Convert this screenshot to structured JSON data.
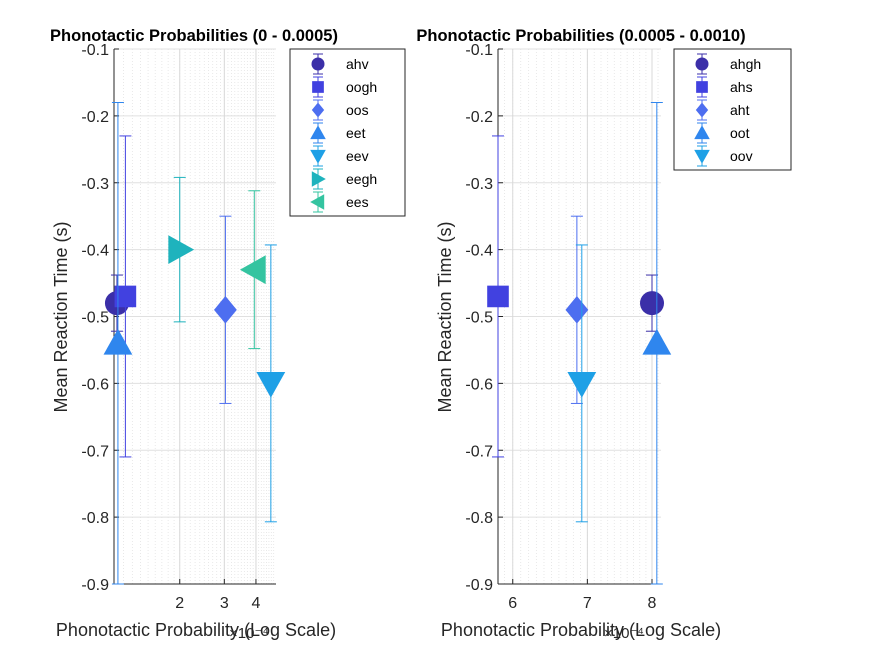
{
  "chart_data": [
    {
      "type": "scatter",
      "title": "Phonotactic Probabilities (0 - 0.0005)",
      "xlabel": "Phonotactic Probability (Log Scale)",
      "ylabel": "Mean Reaction Time (s)",
      "x_scale": "log",
      "x_exponent_label": "×10⁻⁴",
      "xlim": [
        0.00011,
        0.00048
      ],
      "xticks": [
        0.0002,
        0.0003,
        0.0004
      ],
      "xtick_labels": [
        "2",
        "3",
        "4"
      ],
      "ylim": [
        -0.9,
        -0.1
      ],
      "yticks": [
        -0.9,
        -0.8,
        -0.7,
        -0.6,
        -0.5,
        -0.4,
        -0.3,
        -0.2,
        -0.1
      ],
      "ytick_labels": [
        "-0.9",
        "-0.8",
        "-0.7",
        "-0.6",
        "-0.5",
        "-0.4",
        "-0.3",
        "-0.2",
        "-0.1"
      ],
      "grid": true,
      "legend_position": "top-right",
      "series": [
        {
          "name": "ahv",
          "marker": "circle",
          "color": "#3b2fa8",
          "x": 0.000113,
          "y": -0.48,
          "err": 0.042
        },
        {
          "name": "oogh",
          "marker": "square",
          "color": "#4141e0",
          "x": 0.000122,
          "y": -0.47,
          "err": 0.24
        },
        {
          "name": "oos",
          "marker": "diamond",
          "color": "#4d6ef0",
          "x": 0.000303,
          "y": -0.49,
          "err": 0.14
        },
        {
          "name": "eet",
          "marker": "triangle-up",
          "color": "#2f86ee",
          "x": 0.000114,
          "y": -0.54,
          "err": 0.36
        },
        {
          "name": "eev",
          "marker": "triangle-down",
          "color": "#1ea0e6",
          "x": 0.000458,
          "y": -0.6,
          "err": 0.207
        },
        {
          "name": "eegh",
          "marker": "triangle-right",
          "color": "#1eb3bd",
          "x": 0.0002,
          "y": -0.4,
          "err": 0.108
        },
        {
          "name": "ees",
          "marker": "triangle-left",
          "color": "#34c4a0",
          "x": 0.000394,
          "y": -0.43,
          "err": 0.118
        }
      ]
    },
    {
      "type": "scatter",
      "title": "Phonotactic Probabilities (0.0005 - 0.0010)",
      "xlabel": "Phonotactic Probability (Log Scale)",
      "ylabel": "Mean Reaction Time (s)",
      "x_scale": "log",
      "x_exponent_label": "×10⁻⁴",
      "xlim": [
        0.000582,
        0.000815
      ],
      "xticks": [
        0.0006,
        0.0007,
        0.0008
      ],
      "xtick_labels": [
        "6",
        "7",
        "8"
      ],
      "ylim": [
        -0.9,
        -0.1
      ],
      "yticks": [
        -0.9,
        -0.8,
        -0.7,
        -0.6,
        -0.5,
        -0.4,
        -0.3,
        -0.2,
        -0.1
      ],
      "ytick_labels": [
        "-0.9",
        "-0.8",
        "-0.7",
        "-0.6",
        "-0.5",
        "-0.4",
        "-0.3",
        "-0.2",
        "-0.1"
      ],
      "grid": true,
      "legend_position": "top-right",
      "series": [
        {
          "name": "ahgh",
          "marker": "circle",
          "color": "#3b2fa8",
          "x": 0.0008,
          "y": -0.48,
          "err": 0.042
        },
        {
          "name": "ahs",
          "marker": "square",
          "color": "#4141e0",
          "x": 0.000582,
          "y": -0.47,
          "err": 0.24
        },
        {
          "name": "aht",
          "marker": "diamond",
          "color": "#4d6ef0",
          "x": 0.000685,
          "y": -0.49,
          "err": 0.14
        },
        {
          "name": "oot",
          "marker": "triangle-up",
          "color": "#2f86ee",
          "x": 0.000808,
          "y": -0.54,
          "err": 0.36
        },
        {
          "name": "oov",
          "marker": "triangle-down",
          "color": "#1ea0e6",
          "x": 0.000692,
          "y": -0.6,
          "err": 0.207
        }
      ]
    }
  ]
}
